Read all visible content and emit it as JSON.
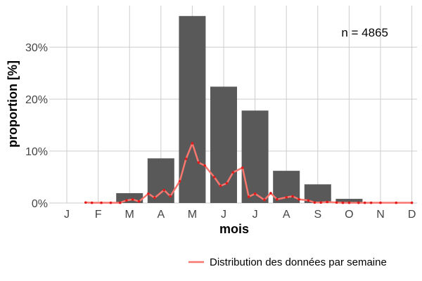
{
  "chart_data": {
    "type": "bar",
    "xlabel": "mois",
    "ylabel": "proportion [%]",
    "annotation": "n = 4865",
    "categories": [
      "J",
      "F",
      "M",
      "A",
      "M",
      "J",
      "J",
      "A",
      "S",
      "O",
      "N",
      "D"
    ],
    "ylim": [
      0,
      38
    ],
    "yticks": [
      0,
      10,
      20,
      30
    ],
    "ytick_labels": [
      "0%",
      "10%",
      "20%",
      "30%"
    ],
    "grid": true,
    "legend_position": "bottom-right",
    "bar_color": "#595959",
    "line_color": "#f8766d",
    "point_color": "#e31a1c",
    "series": [
      {
        "kind": "bar",
        "values": [
          0.0,
          0.0,
          1.9,
          8.6,
          36.0,
          22.4,
          17.8,
          6.2,
          3.6,
          0.8,
          0.0,
          0.0
        ]
      },
      {
        "kind": "line",
        "name": "Distribution des données par semaine",
        "x": [
          1.6,
          1.8,
          2.1,
          2.4,
          2.7,
          2.9,
          3.1,
          3.3,
          3.6,
          3.8,
          4.1,
          4.3,
          4.6,
          4.8,
          5.0,
          5.2,
          5.4,
          5.7,
          5.9,
          6.1,
          6.3,
          6.6,
          6.8,
          7.0,
          7.3,
          7.5,
          7.7,
          8.0,
          8.2,
          8.4,
          8.7,
          8.9,
          9.1,
          9.3,
          9.6,
          9.8,
          10.0,
          10.3,
          10.5,
          10.7,
          11.0,
          11.5,
          12.0
        ],
        "values": [
          0.1,
          0.05,
          0.05,
          0.05,
          0.05,
          0.5,
          0.7,
          0.3,
          1.8,
          1.0,
          2.5,
          1.3,
          4.2,
          8.5,
          11.5,
          7.8,
          7.2,
          5.0,
          3.3,
          3.8,
          5.9,
          6.8,
          1.2,
          1.8,
          0.6,
          1.9,
          0.7,
          1.1,
          1.3,
          0.7,
          0.5,
          0.1,
          0.1,
          0.2,
          0.1,
          0.05,
          0.05,
          0.05,
          0.05,
          0.05,
          0.05,
          0.05,
          0.05
        ]
      }
    ]
  }
}
